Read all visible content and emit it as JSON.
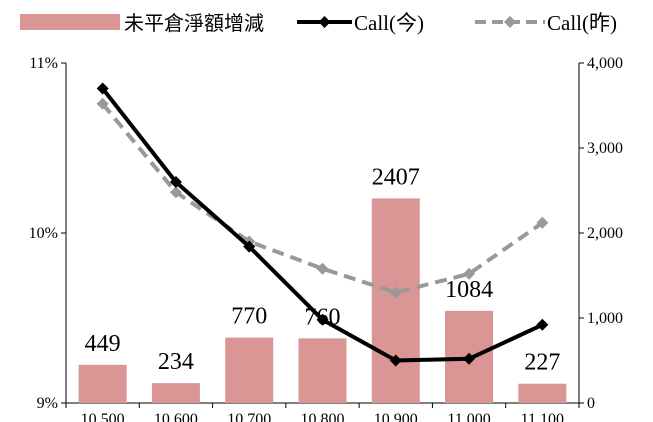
{
  "chart_data": {
    "type": "bar+line",
    "categories": [
      "10,500",
      "10,600",
      "10,700",
      "10,800",
      "10,900",
      "11,000",
      "11,100"
    ],
    "legend": {
      "placement": "top",
      "entries": [
        "未平倉淨額增減",
        "Call(今)",
        "Call(昨)"
      ]
    },
    "y_left": {
      "ylim": [
        9,
        11
      ],
      "ticks": [
        "9%",
        "10%",
        "11%"
      ],
      "unit": "%"
    },
    "y_right": {
      "ylim": [
        0,
        4000
      ],
      "ticks": [
        "0",
        "1,000",
        "2,000",
        "3,000",
        "4,000"
      ]
    },
    "series": [
      {
        "name": "未平倉淨額增減",
        "kind": "bar",
        "axis": "right",
        "color": "#d99694",
        "values": [
          449,
          234,
          770,
          760,
          2407,
          1084,
          227
        ],
        "labels": [
          "449",
          "234",
          "770",
          "760",
          "2407",
          "1084",
          "227"
        ]
      },
      {
        "name": "Call(今)",
        "kind": "line",
        "axis": "left",
        "color": "#000000",
        "style": "solid",
        "marker": "diamond",
        "values": [
          10.85,
          10.3,
          9.92,
          9.49,
          9.25,
          9.26,
          9.46
        ]
      },
      {
        "name": "Call(昨)",
        "kind": "line",
        "axis": "left",
        "color": "#999999",
        "style": "dashed",
        "marker": "diamond",
        "values": [
          10.76,
          10.24,
          9.95,
          9.79,
          9.65,
          9.76,
          10.06
        ]
      }
    ]
  }
}
